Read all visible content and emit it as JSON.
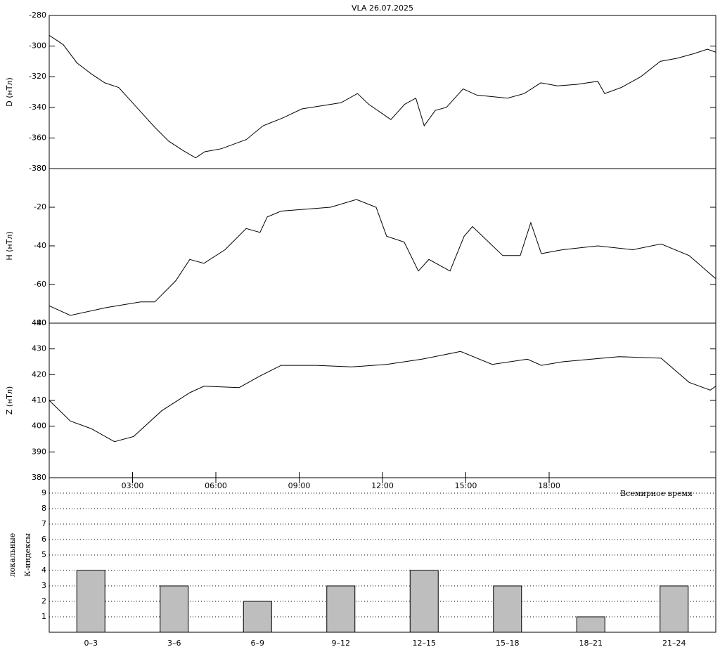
{
  "chart_data": [
    {
      "type": "line",
      "title": "VLA   26.07.2025",
      "ylabel": "D (нТл)",
      "xlim": [
        0,
        24
      ],
      "ylim": [
        -380,
        -280
      ],
      "yticks": [
        -380,
        -360,
        -340,
        -320,
        -300,
        -280
      ],
      "x": [
        0,
        0.5,
        1,
        1.5,
        2,
        2.5,
        3.3,
        3.8,
        4.3,
        4.8,
        5.27,
        5.6,
        6.2,
        7.1,
        7.7,
        8.4,
        9.1,
        9.8,
        10.5,
        11.1,
        11.5,
        12.3,
        12.8,
        13.2,
        13.5,
        13.9,
        14.3,
        14.9,
        15.4,
        16.5,
        17.1,
        17.7,
        18.3,
        19.0,
        19.75,
        20.0,
        20.6,
        21.3,
        22.0,
        22.6,
        23.2,
        23.7,
        24
      ],
      "series": [
        {
          "color": "#000000",
          "values": [
            -293,
            -299,
            -311,
            -318,
            -324,
            -327,
            -343,
            -353,
            -362,
            -368,
            -373,
            -369,
            -367,
            -361,
            -352,
            -347,
            -341,
            -339,
            -337,
            -331,
            -338,
            -348,
            -338,
            -334,
            -352,
            -342,
            -340,
            -328,
            -332,
            -334,
            -331,
            -324,
            -326,
            -325,
            -323,
            -331,
            -327,
            -320,
            -310,
            -308,
            -305,
            -302,
            -304
          ]
        }
      ]
    },
    {
      "type": "line",
      "ylabel": "H (нТл)",
      "xlim": [
        0,
        24
      ],
      "ylim": [
        -80,
        0
      ],
      "yticks": [
        -80,
        -60,
        -40,
        -20,
        0
      ],
      "x": [
        0,
        0.76,
        2.03,
        3.29,
        3.8,
        4.56,
        5.06,
        5.57,
        6.33,
        7.09,
        7.59,
        7.85,
        8.35,
        10.13,
        11.06,
        11.77,
        12.15,
        12.78,
        13.29,
        13.67,
        14.43,
        14.94,
        15.24,
        16.33,
        16.96,
        17.34,
        17.72,
        18.48,
        19.75,
        21.01,
        22.03,
        23.04,
        24
      ],
      "series": [
        {
          "color": "#000000",
          "values": [
            -71,
            -76,
            -72,
            -69,
            -69,
            -58,
            -47,
            -49,
            -42,
            -31,
            -33,
            -25,
            -22,
            -20,
            -16,
            -20,
            -35,
            -38,
            -53,
            -47,
            -53,
            -35,
            -30,
            -45,
            -45,
            -28,
            -44,
            -42,
            -40,
            -42,
            -39,
            -45,
            -57
          ]
        }
      ]
    },
    {
      "type": "line",
      "ylabel": "Z (нТл)",
      "xlim": [
        0,
        24
      ],
      "ylim": [
        380,
        440
      ],
      "yticks": [
        380,
        390,
        400,
        410,
        420,
        430,
        440
      ],
      "xticks": [
        {
          "value": 3,
          "label": "03:00"
        },
        {
          "value": 6,
          "label": "06:00"
        },
        {
          "value": 9,
          "label": "09:00"
        },
        {
          "value": 12,
          "label": "12:00"
        },
        {
          "value": 15,
          "label": "15:00"
        },
        {
          "value": 18,
          "label": "18:00"
        }
      ],
      "x": [
        0,
        0.76,
        1.52,
        2.35,
        3.04,
        4.05,
        5.06,
        5.57,
        6.84,
        7.59,
        8.35,
        9.62,
        10.89,
        12.15,
        13.42,
        14.81,
        15.95,
        17.22,
        17.72,
        18.48,
        20.51,
        22.03,
        23.04,
        23.8,
        24
      ],
      "series": [
        {
          "color": "#000000",
          "values": [
            410,
            402,
            399,
            394,
            396,
            406,
            413,
            415.5,
            415,
            419.5,
            423.6,
            423.6,
            423,
            424,
            426,
            429,
            424,
            426,
            423.6,
            425,
            427,
            426.4,
            417,
            414,
            415.5
          ]
        }
      ]
    },
    {
      "type": "bar",
      "ylabel": [
        "локальные",
        "К-индексы"
      ],
      "annotation": "Всемирное время",
      "ylim": [
        0,
        10
      ],
      "yticks": [
        1,
        2,
        3,
        4,
        5,
        6,
        7,
        8,
        9
      ],
      "grid": true,
      "color": "#bebebe",
      "categories": [
        "0–3",
        "3–6",
        "6–9",
        "9–12",
        "12–15",
        "15–18",
        "18–21",
        "21–24"
      ],
      "values": [
        4,
        3,
        2,
        3,
        4,
        3,
        1,
        3
      ]
    }
  ]
}
